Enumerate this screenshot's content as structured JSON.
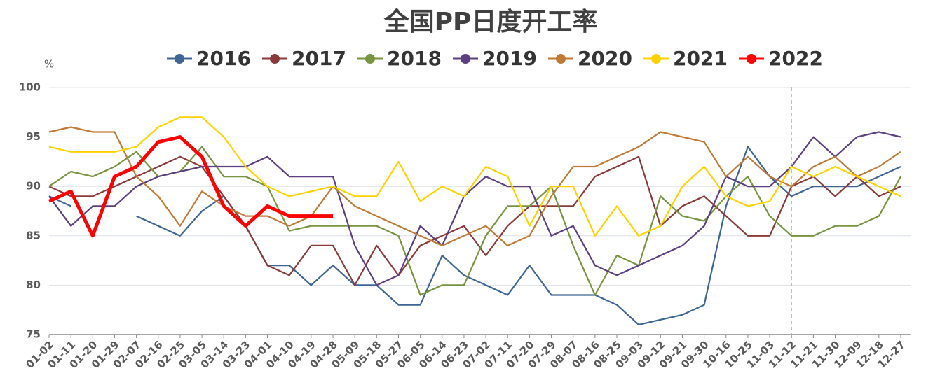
{
  "chart_data": {
    "type": "line",
    "title": "全国PP日度开工率",
    "y_unit": "%",
    "categories": [
      "01-02",
      "01-11",
      "01-20",
      "01-29",
      "02-07",
      "02-16",
      "02-25",
      "03-05",
      "03-14",
      "03-23",
      "04-01",
      "04-10",
      "04-19",
      "04-28",
      "05-09",
      "05-18",
      "05-27",
      "06-05",
      "06-14",
      "06-23",
      "07-02",
      "07-11",
      "07-20",
      "07-29",
      "08-07",
      "08-16",
      "08-25",
      "09-03",
      "09-12",
      "09-21",
      "09-30",
      "10-16",
      "10-25",
      "11-03",
      "11-12",
      "11-21",
      "11-30",
      "12-09",
      "12-18",
      "12-27"
    ],
    "ylim": [
      75,
      100
    ],
    "yticks": [
      75,
      80,
      85,
      90,
      95,
      100
    ],
    "grid": true,
    "legend": "top",
    "marker_line": "11-12",
    "series": [
      {
        "name": "2016",
        "color": "#3d6596",
        "values": [
          89,
          88,
          null,
          null,
          87,
          86,
          85,
          87.5,
          89,
          86,
          82,
          82,
          80,
          82,
          80,
          80,
          78,
          78,
          83,
          81,
          80,
          79,
          82,
          79,
          79,
          79,
          78,
          76,
          76.5,
          77,
          78,
          88,
          94,
          91,
          89,
          90,
          90,
          90,
          91,
          92
        ]
      },
      {
        "name": "2017",
        "color": "#8b3a3a",
        "values": [
          90,
          89,
          89,
          90,
          91,
          92,
          93,
          92,
          89,
          86,
          82,
          81,
          84,
          84,
          80,
          84,
          81,
          84,
          85,
          86,
          83,
          86,
          88,
          88,
          88,
          91,
          92,
          93,
          86,
          88,
          89,
          87,
          85,
          85,
          90,
          91,
          89,
          91,
          89,
          90
        ]
      },
      {
        "name": "2018",
        "color": "#77943f",
        "values": [
          90,
          91.5,
          91,
          92,
          93.5,
          91,
          91.5,
          94,
          91,
          91,
          90,
          85.5,
          86,
          86,
          86,
          86,
          85,
          79,
          80,
          80,
          85,
          88,
          88,
          90,
          84,
          79,
          83,
          82,
          89,
          87,
          86.5,
          89,
          91,
          87,
          85,
          85,
          86,
          86,
          87,
          91
        ]
      },
      {
        "name": "2019",
        "color": "#5b3f80",
        "values": [
          89,
          86,
          88,
          88,
          90,
          91,
          91.5,
          92,
          92,
          92,
          93,
          91,
          91,
          91,
          84,
          80,
          81,
          86,
          84,
          89,
          91,
          90,
          90,
          85,
          86,
          82,
          81,
          82,
          83,
          84,
          86,
          91,
          90,
          90,
          92,
          95,
          93,
          95,
          95.5,
          95
        ]
      },
      {
        "name": "2020",
        "color": "#c07a35",
        "values": [
          95.5,
          96,
          95.5,
          95.5,
          91,
          89,
          86,
          89.5,
          88,
          87,
          87,
          86,
          87,
          90,
          88,
          87,
          86,
          85,
          84,
          85,
          86,
          84,
          85,
          89,
          92,
          92,
          93,
          94,
          95.5,
          95,
          94.5,
          91,
          93,
          91,
          90,
          92,
          93,
          91,
          92,
          93.5
        ]
      },
      {
        "name": "2021",
        "color": "#ffd200",
        "values": [
          94,
          93.5,
          93.5,
          93.5,
          94,
          96,
          97,
          97,
          95,
          92,
          90,
          89,
          89.5,
          90,
          89,
          89,
          92.5,
          88.5,
          90,
          89,
          92,
          91,
          86,
          90,
          90,
          85,
          88,
          85,
          86,
          90,
          92,
          89,
          88,
          88.5,
          92,
          91,
          92,
          91,
          90,
          89
        ]
      },
      {
        "name": "2022",
        "color": "#ff0000",
        "values": [
          88.5,
          89.5,
          85,
          91,
          92,
          94.5,
          95,
          93,
          88,
          86,
          88,
          87,
          87,
          87,
          null,
          null,
          null,
          null,
          null,
          null,
          null,
          null,
          null,
          null,
          null,
          null,
          null,
          null,
          null,
          null,
          null,
          null,
          null,
          null,
          null,
          null,
          null,
          null,
          null,
          null
        ]
      }
    ]
  }
}
